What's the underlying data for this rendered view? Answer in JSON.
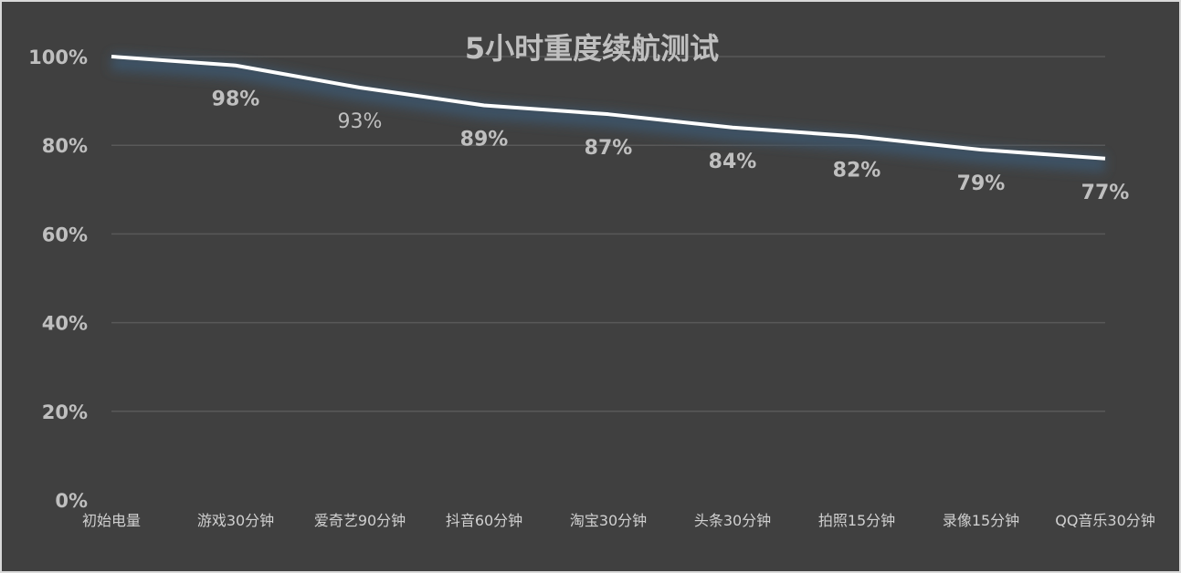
{
  "chart_data": {
    "type": "line",
    "title": "5小时重度续航测试",
    "xlabel": "",
    "ylabel": "",
    "categories": [
      "初始电量",
      "游戏30分钟",
      "爱奇艺90分钟",
      "抖音60分钟",
      "淘宝30分钟",
      "头条30分钟",
      "拍照15分钟",
      "录像15分钟",
      "QQ音乐30分钟"
    ],
    "values": [
      100,
      98,
      93,
      89,
      87,
      84,
      82,
      79,
      77
    ],
    "data_labels": [
      "",
      "98%",
      "93%",
      "89%",
      "87%",
      "84%",
      "82%",
      "79%",
      "77%"
    ],
    "ylim": [
      0,
      100
    ],
    "yticks": [
      0,
      20,
      40,
      60,
      80,
      100
    ],
    "ytick_labels": [
      "0%",
      "20%",
      "40%",
      "60%",
      "80%",
      "100%"
    ],
    "grid": true,
    "legend": "none",
    "colors": {
      "background": "#404040",
      "line": "#ffffff",
      "glow": "#3d5266",
      "text": "#bfbfbf"
    }
  }
}
